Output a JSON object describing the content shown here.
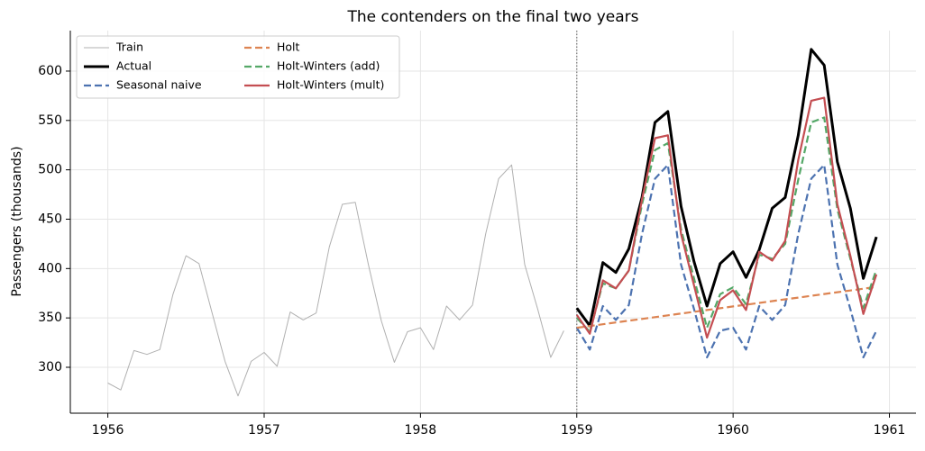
{
  "chart_data": {
    "type": "line",
    "title": "The contenders on the final two years",
    "y_label": "Passengers (thousands)",
    "xlim": [
      1955.76,
      1961.17
    ],
    "ylim": [
      253.5,
      641
    ],
    "xticks": [
      1956,
      1957,
      1958,
      1959,
      1960,
      1961
    ],
    "yticks": [
      300,
      350,
      400,
      450,
      500,
      550,
      600
    ],
    "grid": true,
    "legend": "upper left",
    "legend_columns": 2,
    "split": 1959,
    "series": [
      {
        "name": "Train",
        "color": "#b0b0b0",
        "linestyle": "solid",
        "linewidth": 1,
        "x": [
          1956,
          1956.083,
          1956.167,
          1956.25,
          1956.333,
          1956.417,
          1956.5,
          1956.583,
          1956.667,
          1956.75,
          1956.833,
          1956.917,
          1957,
          1957.083,
          1957.167,
          1957.25,
          1957.333,
          1957.417,
          1957.5,
          1957.583,
          1957.667,
          1957.75,
          1957.833,
          1957.917,
          1958,
          1958.083,
          1958.167,
          1958.25,
          1958.333,
          1958.417,
          1958.5,
          1958.583,
          1958.667,
          1958.75,
          1958.833,
          1958.917
        ],
        "values": [
          284,
          277,
          317,
          313,
          318,
          374,
          413,
          405,
          355,
          306,
          271,
          306,
          315,
          301,
          356,
          348,
          355,
          422,
          465,
          467,
          404,
          347,
          305,
          336,
          340,
          318,
          362,
          348,
          363,
          435,
          491,
          505,
          404,
          359,
          310,
          337
        ]
      },
      {
        "name": "Actual",
        "color": "#000000",
        "linestyle": "solid",
        "linewidth": 3,
        "x": [
          1959,
          1959.083,
          1959.167,
          1959.25,
          1959.333,
          1959.417,
          1959.5,
          1959.583,
          1959.667,
          1959.75,
          1959.833,
          1959.917,
          1960,
          1960.083,
          1960.167,
          1960.25,
          1960.333,
          1960.417,
          1960.5,
          1960.583,
          1960.667,
          1960.75,
          1960.833,
          1960.917
        ],
        "values": [
          360,
          342,
          406,
          396,
          420,
          472,
          548,
          559,
          463,
          407,
          362,
          405,
          417,
          391,
          419,
          461,
          472,
          535,
          622,
          606,
          508,
          461,
          390,
          432
        ]
      },
      {
        "name": "Seasonal naive",
        "color": "#4c72b0",
        "linestyle": "dashed",
        "linewidth": 2.2,
        "x": [
          1959,
          1959.083,
          1959.167,
          1959.25,
          1959.333,
          1959.417,
          1959.5,
          1959.583,
          1959.667,
          1959.75,
          1959.833,
          1959.917,
          1960,
          1960.083,
          1960.167,
          1960.25,
          1960.333,
          1960.417,
          1960.5,
          1960.583,
          1960.667,
          1960.75,
          1960.833,
          1960.917
        ],
        "values": [
          340,
          318,
          362,
          348,
          363,
          435,
          491,
          505,
          404,
          359,
          310,
          337,
          340,
          318,
          362,
          348,
          363,
          435,
          491,
          505,
          404,
          359,
          310,
          337
        ]
      },
      {
        "name": "Holt",
        "color": "#dd8452",
        "linestyle": "dashed",
        "linewidth": 2.2,
        "x": [
          1959,
          1959.083,
          1959.167,
          1959.25,
          1959.333,
          1959.417,
          1959.5,
          1959.583,
          1959.667,
          1959.75,
          1959.833,
          1959.917,
          1960,
          1960.083,
          1960.167,
          1960.25,
          1960.333,
          1960.417,
          1960.5,
          1960.583,
          1960.667,
          1960.75,
          1960.833,
          1960.917
        ],
        "values": [
          340,
          341.8,
          343.6,
          345.4,
          347.2,
          349,
          350.8,
          352.6,
          354.4,
          356.2,
          358,
          359.8,
          361.6,
          363.4,
          365.2,
          367,
          368.8,
          370.6,
          372.4,
          374.2,
          376,
          377.8,
          379.6,
          381.4
        ]
      },
      {
        "name": "Holt-Winters (add)",
        "color": "#55a868",
        "linestyle": "dashed",
        "linewidth": 2.2,
        "x": [
          1959,
          1959.083,
          1959.167,
          1959.25,
          1959.333,
          1959.417,
          1959.5,
          1959.583,
          1959.667,
          1959.75,
          1959.833,
          1959.917,
          1960,
          1960.083,
          1960.167,
          1960.25,
          1960.333,
          1960.417,
          1960.5,
          1960.583,
          1960.667,
          1960.75,
          1960.833,
          1960.917
        ],
        "values": [
          350,
          336,
          385,
          380,
          398,
          465,
          520,
          527,
          440,
          390,
          340,
          374,
          381,
          364,
          414,
          410,
          425,
          490,
          548,
          553,
          460,
          410,
          360,
          399
        ]
      },
      {
        "name": "Holt-Winters (mult)",
        "color": "#c44e52",
        "linestyle": "solid",
        "linewidth": 2.2,
        "x": [
          1959,
          1959.083,
          1959.167,
          1959.25,
          1959.333,
          1959.417,
          1959.5,
          1959.583,
          1959.667,
          1959.75,
          1959.833,
          1959.917,
          1960,
          1960.083,
          1960.167,
          1960.25,
          1960.333,
          1960.417,
          1960.5,
          1960.583,
          1960.667,
          1960.75,
          1960.833,
          1960.917
        ],
        "values": [
          353,
          334,
          388,
          380,
          398,
          470,
          532,
          535,
          435,
          383,
          330,
          368,
          378,
          358,
          417,
          408,
          428,
          510,
          570,
          573,
          465,
          413,
          354,
          394
        ]
      }
    ]
  }
}
